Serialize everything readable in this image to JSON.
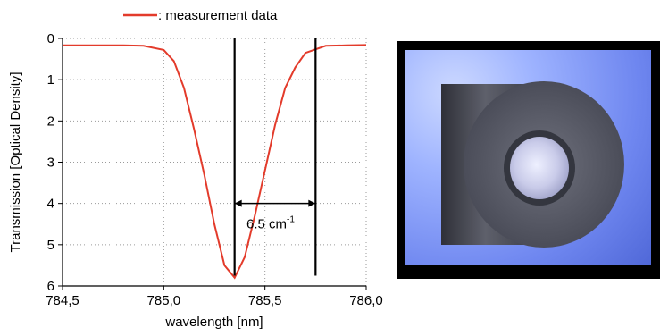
{
  "chart_data": {
    "type": "line",
    "xlabel": "wavelength [nm]",
    "ylabel": "Transmission [Optical Density]",
    "xlim": [
      784.5,
      786.0
    ],
    "ylim": [
      0,
      6
    ],
    "y_inverted": true,
    "x_ticks": [
      "784,5",
      "785,0",
      "785,5",
      "786,0"
    ],
    "x_tick_values": [
      784.5,
      785.0,
      785.5,
      786.0
    ],
    "y_ticks": [
      "0",
      "1",
      "2",
      "3",
      "4",
      "5",
      "6"
    ],
    "y_tick_values": [
      0,
      1,
      2,
      3,
      4,
      5,
      6
    ],
    "grid": true,
    "legend": "top",
    "series": [
      {
        "name": ": measurement data",
        "color": "#e33b2b",
        "x": [
          784.5,
          784.6,
          784.7,
          784.8,
          784.9,
          785.0,
          785.05,
          785.1,
          785.15,
          785.2,
          785.25,
          785.3,
          785.35,
          785.4,
          785.45,
          785.5,
          785.55,
          785.6,
          785.65,
          785.7,
          785.8,
          785.9,
          786.0
        ],
        "y": [
          0.17,
          0.17,
          0.17,
          0.17,
          0.18,
          0.28,
          0.55,
          1.2,
          2.2,
          3.3,
          4.5,
          5.5,
          5.8,
          5.3,
          4.3,
          3.2,
          2.1,
          1.2,
          0.7,
          0.35,
          0.18,
          0.17,
          0.16
        ]
      }
    ],
    "annotations": [
      {
        "text": "6.5 cm",
        "superscript": "-1",
        "x": 785.55,
        "y": 4.6
      }
    ],
    "vertical_markers": [
      785.35,
      785.75
    ],
    "width_arrow": {
      "x_start": 785.35,
      "x_end": 785.75,
      "y": 4.0
    }
  },
  "photo": {
    "description_icon": "optical-filter-photo",
    "background_color": "#6f87f0",
    "frame_color": "#000000"
  }
}
